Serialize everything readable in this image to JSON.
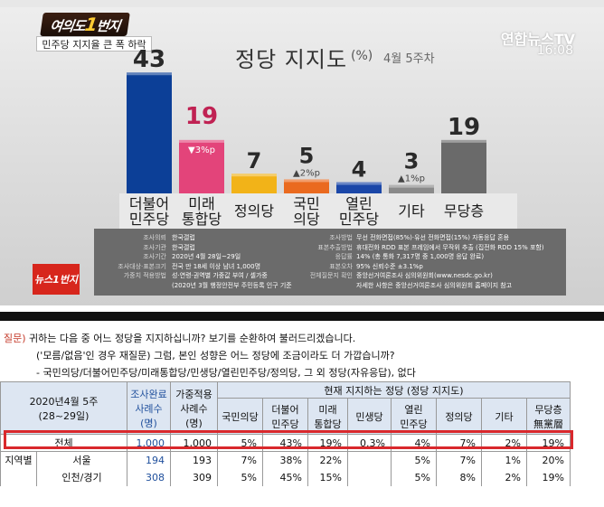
{
  "broadcast": {
    "show_logo_left": "여의도",
    "show_logo_big": "1",
    "show_logo_right": "번지",
    "subtitle": "민주당 지지율 큰 폭 하락",
    "channel": "연합뉴스TV",
    "time": "16:08",
    "title": "정당 지지도",
    "title_unit": "(%)",
    "title_week": "4월 5주차",
    "bottom_logo": "뉴스1번지"
  },
  "chart_data": {
    "type": "bar",
    "title": "정당 지지도",
    "categories": [
      "더불어민주당",
      "미래통합당",
      "정의당",
      "국민의당",
      "열린민주당",
      "기타",
      "무당층"
    ],
    "category_labels": [
      [
        "더불어",
        "민주당"
      ],
      [
        "미래",
        "통합당"
      ],
      [
        "정의당"
      ],
      [
        "국민",
        "의당"
      ],
      [
        "열린",
        "민주당"
      ],
      [
        "기타"
      ],
      [
        "무당층"
      ]
    ],
    "values": [
      43,
      19,
      7,
      5,
      4,
      3,
      19
    ],
    "changes": [
      "",
      "▼3%p",
      "",
      "▲2%p",
      "",
      "▲1%p",
      ""
    ],
    "colors": [
      "#0c3f97",
      "#e3447a",
      "#f2b318",
      "#ea6a1f",
      "#1b47a8",
      "#8a8a8a",
      "#6a6a6a"
    ],
    "ylim": [
      0,
      45
    ]
  },
  "info_panel": {
    "left": [
      {
        "key": "조사의뢰",
        "value": "한국갤럽"
      },
      {
        "key": "조사기관",
        "value": "한국갤럽"
      },
      {
        "key": "조사기간",
        "value": "2020년 4월 28일~29일"
      },
      {
        "key": "조사대상·표본크기",
        "value": "전국 만 18세 이상 남녀 1,000명"
      },
      {
        "key": "가중치 적용방법",
        "value": "성·연령·권역별 가중값 부여 / 셀가중"
      },
      {
        "key": "",
        "value": "(2020년 3월 행정안전부 주민등록 인구 기준"
      }
    ],
    "right": [
      {
        "key": "조사방법",
        "value": "무선 전화면접(85%)·유선 전화면접(15%) 자동응답 혼용"
      },
      {
        "key": "표본추출방법",
        "value": "휴대전화 RDD 표본 프레임에서 무작위 추출 (집전화 RDD 15% 포함)"
      },
      {
        "key": "응답률",
        "value": "14% (총 통화 7,317명 중 1,000명 응답 완료)"
      },
      {
        "key": "표본오차",
        "value": "95% 신뢰수준 ±3.1%p"
      },
      {
        "key": "전체질문지 확인",
        "value": "중앙선거여론조사 심의위원회(www.nesdc.go.kr)"
      },
      {
        "key": "",
        "value": "자세한 사항은 중앙선거여론조사 심의위원회 홈페이지 참고"
      }
    ]
  },
  "survey": {
    "q_label": "질문)",
    "q_line1": "귀하는 다음 중 어느 정당을 지지하십니까? 보기를 순환하여 불러드리겠습니다.",
    "q_line2": "('모름/없음'인 경우 재질문) 그럼, 본인 성향은 어느 정당에 조금이라도 더 가깝습니까?",
    "q_line3": "- 국민의당/더불어민주당/미래통합당/민생당/열린민주당/정의당, 그 외 정당(자유응답), 없다",
    "table": {
      "corner_line1": "2020년4월 5주",
      "corner_line2": "(28~29일)",
      "col_done_1": "조사완료",
      "col_done_2": "사례수",
      "col_done_3": "(명)",
      "col_weight_1": "가중적용",
      "col_weight_2": "사례수",
      "col_weight_3": "(명)",
      "group_header": "현재 지지하는 정당 (정당 지지도)",
      "party_headers": [
        [
          "국민의당"
        ],
        [
          "더불어",
          "민주당"
        ],
        [
          "미래",
          "통합당"
        ],
        [
          "민생당"
        ],
        [
          "열린",
          "민주당"
        ],
        [
          "정의당"
        ],
        [
          "기타"
        ],
        [
          "무당층",
          "無黨層"
        ]
      ],
      "rows": [
        {
          "group": "",
          "label": "전체",
          "done": "1,000",
          "weighted": "1,000",
          "cells": [
            "5%",
            "43%",
            "19%",
            "0.3%",
            "4%",
            "7%",
            "2%",
            "19%"
          ]
        },
        {
          "group": "지역별",
          "label": "서울",
          "done": "194",
          "weighted": "193",
          "cells": [
            "7%",
            "38%",
            "22%",
            "",
            "5%",
            "7%",
            "1%",
            "20%"
          ]
        },
        {
          "group": "",
          "label": "인천/경기",
          "done": "308",
          "weighted": "309",
          "cells": [
            "5%",
            "45%",
            "15%",
            "",
            "5%",
            "8%",
            "2%",
            "19%"
          ]
        }
      ]
    }
  }
}
